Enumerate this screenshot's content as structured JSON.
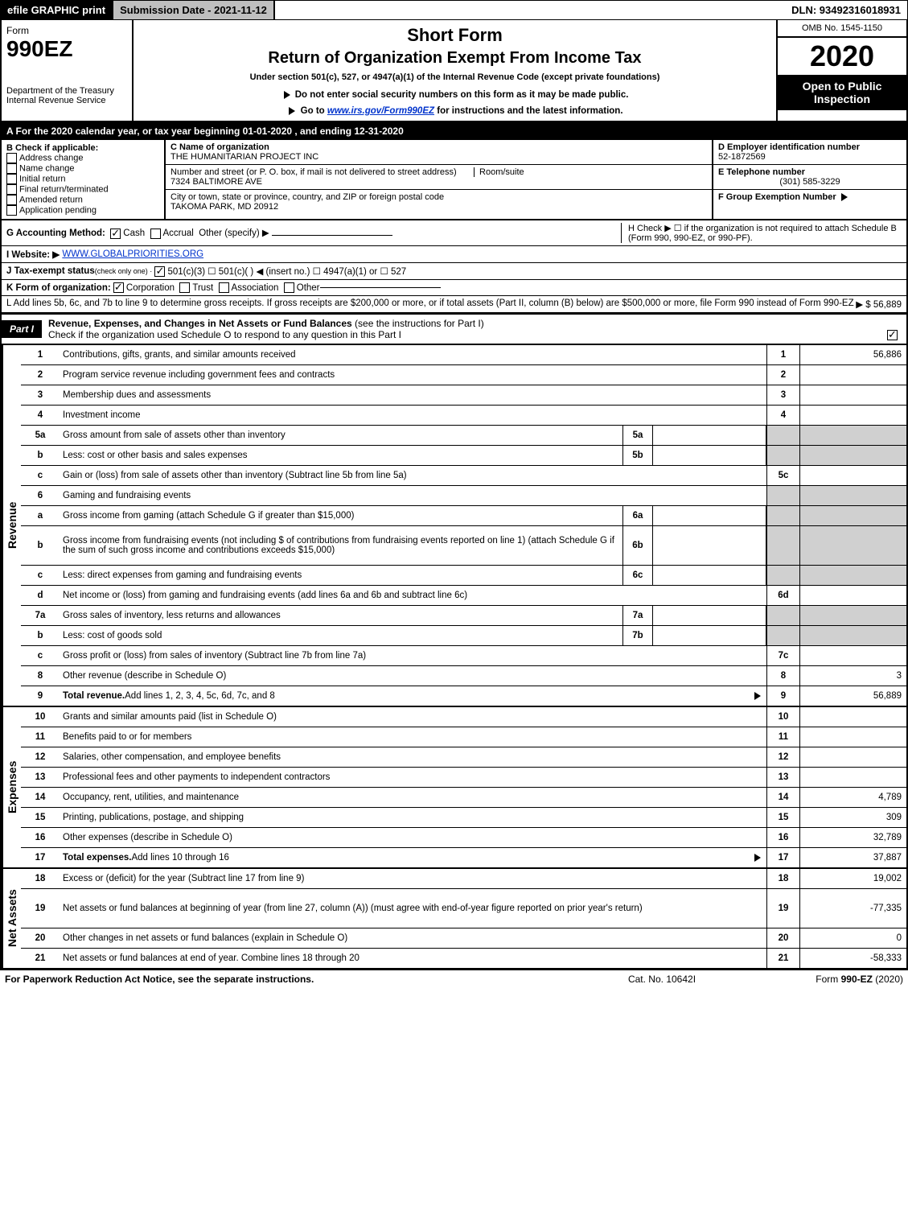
{
  "topbar": {
    "efile": "efile GRAPHIC print",
    "submission": "Submission Date - 2021-11-12",
    "dln": "DLN: 93492316018931"
  },
  "header": {
    "form_word": "Form",
    "form_number": "990EZ",
    "short_form": "Short Form",
    "title": "Return of Organization Exempt From Income Tax",
    "subtitle": "Under section 501(c), 527, or 4947(a)(1) of the Internal Revenue Code (except private foundations)",
    "warn": "Do not enter social security numbers on this form as it may be made public.",
    "goto": "Go to ",
    "goto_link": "www.irs.gov/Form990EZ",
    "goto_after": " for instructions and the latest information.",
    "dept1": "Department of the Treasury",
    "dept2": "Internal Revenue Service",
    "omb": "OMB No. 1545-1150",
    "year": "2020",
    "open_public": "Open to Public Inspection"
  },
  "line_a": "A For the 2020 calendar year, or tax year beginning 01-01-2020 , and ending 12-31-2020",
  "checkif": {
    "title": "B Check if applicable:",
    "items": [
      "Address change",
      "Name change",
      "Initial return",
      "Final return/terminated",
      "Amended return",
      "Application pending"
    ]
  },
  "org": {
    "c_label": "C Name of organization",
    "c_name": "THE HUMANITARIAN PROJECT INC",
    "street_label": "Number and street (or P. O. box, if mail is not delivered to street address)",
    "room_label": "Room/suite",
    "street": "7324 BALTIMORE AVE",
    "city_label": "City or town, state or province, country, and ZIP or foreign postal code",
    "city": "TAKOMA PARK, MD  20912"
  },
  "right": {
    "d_label": "D Employer identification number",
    "d_val": "52-1872569",
    "e_label": "E Telephone number",
    "e_val": "(301) 585-3229",
    "f_label": "F Group Exemption Number",
    "h_text": "H Check ▶  ☐  if the organization is not required to attach Schedule B (Form 990, 990-EZ, or 990-PF)."
  },
  "g": {
    "label": "G Accounting Method:",
    "cash": "Cash",
    "accrual": "Accrual",
    "other": "Other (specify) ▶"
  },
  "i": {
    "label": "I Website: ▶",
    "val": "WWW.GLOBALPRIORITIES.ORG"
  },
  "j": {
    "label": "J Tax-exempt status",
    "sub": "(check only one) ·",
    "text": "501(c)(3)  ☐ 501(c)(  ) ◀ (insert no.)  ☐ 4947(a)(1) or  ☐ 527"
  },
  "k": {
    "label": "K Form of organization:",
    "corp": "Corporation",
    "trust": "Trust",
    "assoc": "Association",
    "other": "Other"
  },
  "l": {
    "text": "L Add lines 5b, 6c, and 7b to line 9 to determine gross receipts. If gross receipts are $200,000 or more, or if total assets (Part II, column (B) below) are $500,000 or more, file Form 990 instead of Form 990-EZ",
    "amount": "▶ $ 56,889"
  },
  "part1": {
    "label": "Part I",
    "title": "Revenue, Expenses, and Changes in Net Assets or Fund Balances",
    "note": "(see the instructions for Part I)",
    "check": "Check if the organization used Schedule O to respond to any question in this Part I"
  },
  "revenue_rows": [
    {
      "n": "1",
      "desc": "Contributions, gifts, grants, and similar amounts received",
      "rn": "1",
      "amt": "56,886"
    },
    {
      "n": "2",
      "desc": "Program service revenue including government fees and contracts",
      "rn": "2",
      "amt": ""
    },
    {
      "n": "3",
      "desc": "Membership dues and assessments",
      "rn": "3",
      "amt": ""
    },
    {
      "n": "4",
      "desc": "Investment income",
      "rn": "4",
      "amt": ""
    },
    {
      "n": "5a",
      "desc": "Gross amount from sale of assets other than inventory",
      "sub": "5a"
    },
    {
      "n": "b",
      "desc": "Less: cost or other basis and sales expenses",
      "sub": "5b"
    },
    {
      "n": "c",
      "desc": "Gain or (loss) from sale of assets other than inventory (Subtract line 5b from line 5a)",
      "rn": "5c",
      "amt": ""
    },
    {
      "n": "6",
      "desc": "Gaming and fundraising events",
      "plain": true
    },
    {
      "n": "a",
      "desc": "Gross income from gaming (attach Schedule G if greater than $15,000)",
      "sub": "6a"
    },
    {
      "n": "b",
      "desc": "Gross income from fundraising events (not including $                          of contributions from fundraising events reported on line 1) (attach Schedule G if the sum of such gross income and contributions exceeds $15,000)",
      "sub": "6b",
      "tall": true
    },
    {
      "n": "c",
      "desc": "Less: direct expenses from gaming and fundraising events",
      "sub": "6c"
    },
    {
      "n": "d",
      "desc": "Net income or (loss) from gaming and fundraising events (add lines 6a and 6b and subtract line 6c)",
      "rn": "6d",
      "amt": ""
    },
    {
      "n": "7a",
      "desc": "Gross sales of inventory, less returns and allowances",
      "sub": "7a"
    },
    {
      "n": "b",
      "desc": "Less: cost of goods sold",
      "sub": "7b"
    },
    {
      "n": "c",
      "desc": "Gross profit or (loss) from sales of inventory (Subtract line 7b from line 7a)",
      "rn": "7c",
      "amt": ""
    },
    {
      "n": "8",
      "desc": "Other revenue (describe in Schedule O)",
      "rn": "8",
      "amt": "3"
    },
    {
      "n": "9",
      "desc": "Total revenue. Add lines 1, 2, 3, 4, 5c, 6d, 7c, and 8",
      "rn": "9",
      "amt": "56,889",
      "bold": true,
      "arrow": true
    }
  ],
  "expense_rows": [
    {
      "n": "10",
      "desc": "Grants and similar amounts paid (list in Schedule O)",
      "rn": "10",
      "amt": ""
    },
    {
      "n": "11",
      "desc": "Benefits paid to or for members",
      "rn": "11",
      "amt": ""
    },
    {
      "n": "12",
      "desc": "Salaries, other compensation, and employee benefits",
      "rn": "12",
      "amt": ""
    },
    {
      "n": "13",
      "desc": "Professional fees and other payments to independent contractors",
      "rn": "13",
      "amt": ""
    },
    {
      "n": "14",
      "desc": "Occupancy, rent, utilities, and maintenance",
      "rn": "14",
      "amt": "4,789"
    },
    {
      "n": "15",
      "desc": "Printing, publications, postage, and shipping",
      "rn": "15",
      "amt": "309"
    },
    {
      "n": "16",
      "desc": "Other expenses (describe in Schedule O)",
      "rn": "16",
      "amt": "32,789"
    },
    {
      "n": "17",
      "desc": "Total expenses. Add lines 10 through 16",
      "rn": "17",
      "amt": "37,887",
      "bold": true,
      "arrow": true
    }
  ],
  "netassets_rows": [
    {
      "n": "18",
      "desc": "Excess or (deficit) for the year (Subtract line 17 from line 9)",
      "rn": "18",
      "amt": "19,002"
    },
    {
      "n": "19",
      "desc": "Net assets or fund balances at beginning of year (from line 27, column (A)) (must agree with end-of-year figure reported on prior year's return)",
      "rn": "19",
      "amt": "-77,335",
      "tall": true
    },
    {
      "n": "20",
      "desc": "Other changes in net assets or fund balances (explain in Schedule O)",
      "rn": "20",
      "amt": "0"
    },
    {
      "n": "21",
      "desc": "Net assets or fund balances at end of year. Combine lines 18 through 20",
      "rn": "21",
      "amt": "-58,333"
    }
  ],
  "footer": {
    "left": "For Paperwork Reduction Act Notice, see the separate instructions.",
    "center": "Cat. No. 10642I",
    "right": "Form 990-EZ (2020)"
  },
  "section_labels": {
    "revenue": "Revenue",
    "expenses": "Expenses",
    "netassets": "Net Assets"
  }
}
